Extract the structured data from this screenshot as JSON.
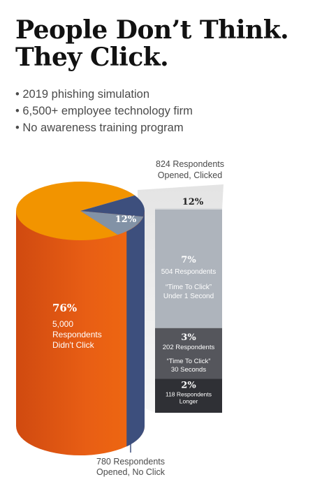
{
  "header": {
    "title_line1": "People Don’t Think.",
    "title_line2": "They Click."
  },
  "bullets": [
    "2019 phishing simulation",
    "6,500+ employee technology firm",
    "No awareness training program"
  ],
  "chart_data": {
    "type": "pie",
    "title": "",
    "slices": [
      {
        "value": 76,
        "label_pct": "76%",
        "label_lines": [
          "5,000",
          "Respondents",
          "Didn't Click"
        ],
        "color": "#e8601a"
      },
      {
        "value": 12,
        "label_pct": "12%",
        "label_lines": [
          "824 Respondents",
          "Opened,  Clicked"
        ],
        "color": "#8292a6"
      },
      {
        "value": 12,
        "label_lines": [
          "780 Respondents",
          "Opened, No Click"
        ],
        "color": "#3d4f7d"
      }
    ],
    "breakdown": {
      "total_pct": "12%",
      "segments": [
        {
          "value": 7,
          "label_pct": "7%",
          "label_lines": [
            "504 Respondents",
            "“Time To Click”",
            "Under 1 Second"
          ],
          "color": "#aeb4bc"
        },
        {
          "value": 3,
          "label_pct": "3%",
          "label_lines": [
            "202 Respondents",
            "“Time To Click”",
            "30 Seconds"
          ],
          "color": "#55565c"
        },
        {
          "value": 2,
          "label_pct": "2%",
          "label_lines": [
            "118 Respondents",
            "Longer"
          ],
          "color": "#2f3035"
        }
      ]
    },
    "colors": {
      "top_face": "#f29400",
      "side": "#e25b12",
      "connector": "#ececec"
    }
  }
}
